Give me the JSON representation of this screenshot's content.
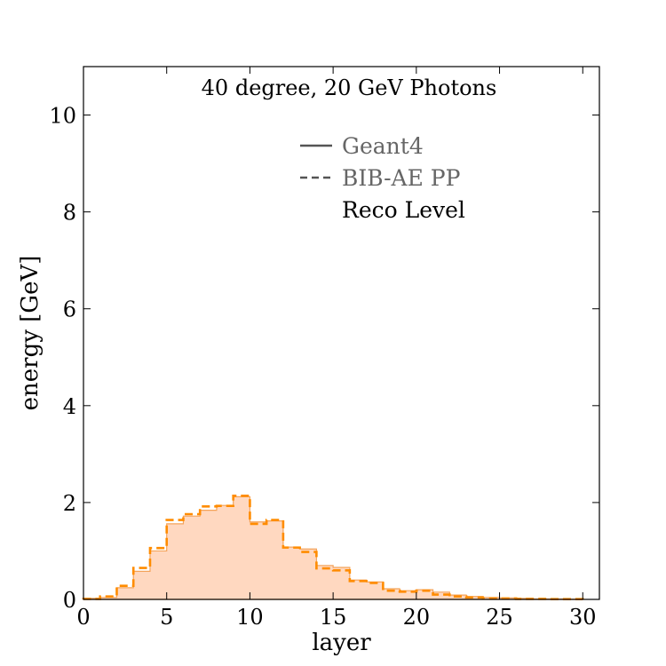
{
  "chart_data": {
    "type": "histogram-step",
    "title": "40 degree, 20 GeV Photons",
    "xlabel": "layer",
    "ylabel": "energy [GeV]",
    "xlim": [
      0,
      31
    ],
    "ylim": [
      0,
      11
    ],
    "xticks": [
      0,
      5,
      10,
      15,
      20,
      25,
      30
    ],
    "yticks": [
      0,
      2,
      4,
      6,
      8,
      10
    ],
    "grid": false,
    "legend_placement": "top-center",
    "legend": [
      {
        "label": "Geant4",
        "style": "solid",
        "color": "#555555"
      },
      {
        "label": "BIB-AE PP",
        "style": "dashed",
        "color": "#555555"
      }
    ],
    "legend_note": "Reco Level",
    "bin_edges": [
      0,
      1,
      2,
      3,
      4,
      5,
      6,
      7,
      8,
      9,
      10,
      11,
      12,
      13,
      14,
      15,
      16,
      17,
      18,
      19,
      20,
      21,
      22,
      23,
      24,
      25,
      26,
      27,
      28,
      29,
      30
    ],
    "series": [
      {
        "name": "Geant4",
        "style": "filled-step",
        "fill_color": "#ffd8c0",
        "line_color": "#f4a35a",
        "values": [
          0.02,
          0.04,
          0.24,
          0.58,
          1.0,
          1.56,
          1.72,
          1.84,
          1.94,
          2.12,
          1.6,
          1.62,
          1.08,
          1.04,
          0.7,
          0.66,
          0.4,
          0.36,
          0.22,
          0.18,
          0.2,
          0.15,
          0.09,
          0.06,
          0.04,
          0.03,
          0.02,
          0.01,
          0.01,
          0.005
        ]
      },
      {
        "name": "BIB-AE PP",
        "style": "dashed-step",
        "line_color": "#ff8c00",
        "values": [
          0.01,
          0.06,
          0.28,
          0.65,
          1.06,
          1.64,
          1.76,
          1.92,
          1.93,
          2.14,
          1.56,
          1.64,
          1.07,
          0.98,
          0.64,
          0.6,
          0.38,
          0.34,
          0.18,
          0.16,
          0.18,
          0.1,
          0.06,
          0.04,
          0.02,
          0.02,
          0.01,
          0.01,
          0.005,
          0.005
        ]
      }
    ]
  }
}
